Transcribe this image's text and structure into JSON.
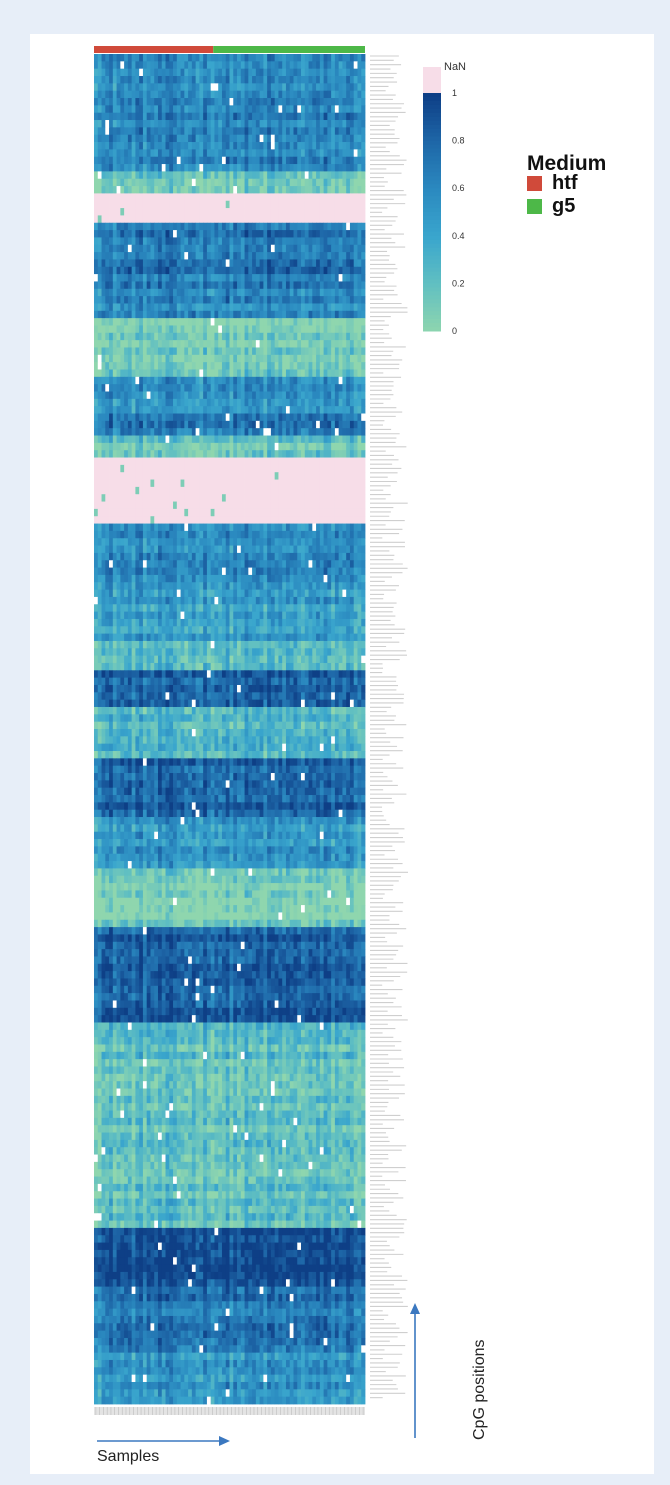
{
  "chart_data": {
    "type": "heatmap",
    "title": "",
    "xlabel": "Samples",
    "ylabel": "CpG positions",
    "column_annotation": {
      "title": "Medium",
      "groups": [
        {
          "label": "htf",
          "color": "#d04a3a",
          "fraction": 0.44
        },
        {
          "label": "g5",
          "color": "#4db848",
          "fraction": 0.56
        }
      ]
    },
    "colorbar": {
      "missing_label": "NaN",
      "missing_color": "#f7dde8",
      "range": [
        0,
        1
      ],
      "ticks": [
        0,
        0.2,
        0.4,
        0.6,
        0.8,
        1
      ],
      "tick_labels": [
        "0",
        "0.2",
        "0.4",
        "0.6",
        "0.8",
        "1"
      ],
      "colors": [
        "#8fd6ae",
        "#62c0c1",
        "#3aa6cd",
        "#2b8ac0",
        "#1e67a8",
        "#0e3f86"
      ]
    },
    "row_blocks": [
      {
        "rows": 6,
        "mean": 0.55
      },
      {
        "rows": 10,
        "mean": 0.62
      },
      {
        "rows": 3,
        "mean": 0.1
      },
      {
        "rows": 4,
        "mean": null
      },
      {
        "rows": 9,
        "mean": 0.7
      },
      {
        "rows": 4,
        "mean": 0.6
      },
      {
        "rows": 8,
        "mean": 0.08
      },
      {
        "rows": 5,
        "mean": 0.55
      },
      {
        "rows": 3,
        "mean": 0.7
      },
      {
        "rows": 3,
        "mean": 0.15
      },
      {
        "rows": 9,
        "mean": null
      },
      {
        "rows": 7,
        "mean": 0.6
      },
      {
        "rows": 9,
        "mean": 0.45
      },
      {
        "rows": 4,
        "mean": 0.25
      },
      {
        "rows": 5,
        "mean": 0.85
      },
      {
        "rows": 7,
        "mean": 0.3
      },
      {
        "rows": 8,
        "mean": 0.8
      },
      {
        "rows": 7,
        "mean": 0.5
      },
      {
        "rows": 8,
        "mean": 0.05
      },
      {
        "rows": 13,
        "mean": 0.85
      },
      {
        "rows": 14,
        "mean": 0.2
      },
      {
        "rows": 14,
        "mean": 0.18
      },
      {
        "rows": 8,
        "mean": 0.95
      },
      {
        "rows": 8,
        "mean": 0.7
      },
      {
        "rows": 8,
        "mean": 0.55
      }
    ]
  }
}
